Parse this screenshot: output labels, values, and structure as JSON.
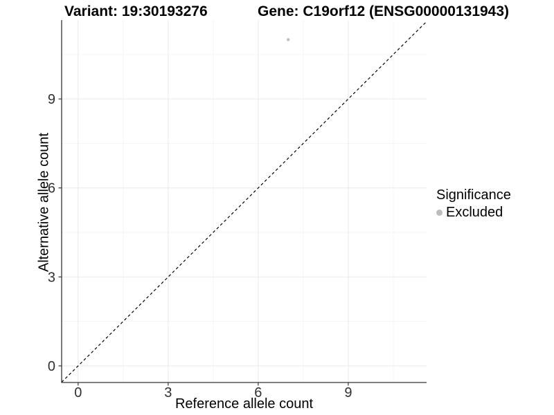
{
  "titles": {
    "variant": "Variant: 19:30193276",
    "gene": "Gene: C19orf12 (ENSG00000131943)"
  },
  "chart_data": {
    "type": "scatter",
    "xlabel": "Reference allele count",
    "ylabel": "Alternative allele count",
    "x_ticks": [
      0,
      3,
      6,
      9
    ],
    "y_ticks": [
      0,
      3,
      6,
      9
    ],
    "x_minor_ticks": [
      1.5,
      4.5,
      7.5,
      10.5
    ],
    "y_minor_ticks": [
      1.5,
      4.5,
      7.5,
      10.5
    ],
    "xlim": [
      -0.55,
      11.61
    ],
    "ylim": [
      -0.56,
      11.66
    ],
    "grid": true,
    "points": [
      {
        "x": 7,
        "y": 11,
        "significance": "Excluded"
      }
    ],
    "identity_line": {
      "type": "dashed",
      "from": [
        -0.55,
        -0.55
      ],
      "to": [
        11.61,
        11.61
      ]
    },
    "legend": {
      "position": "right",
      "title": "Significance",
      "items": [
        {
          "label": "Excluded",
          "color": "#bdbdbd"
        }
      ]
    }
  },
  "colors": {
    "background": "#ffffff",
    "point": "#bdbdbd",
    "axis_line": "#333333",
    "tick_label": "#303030",
    "grid_major": "#e9e9e9",
    "grid_minor": "#f5f5f5",
    "identity_line": "#000000"
  }
}
